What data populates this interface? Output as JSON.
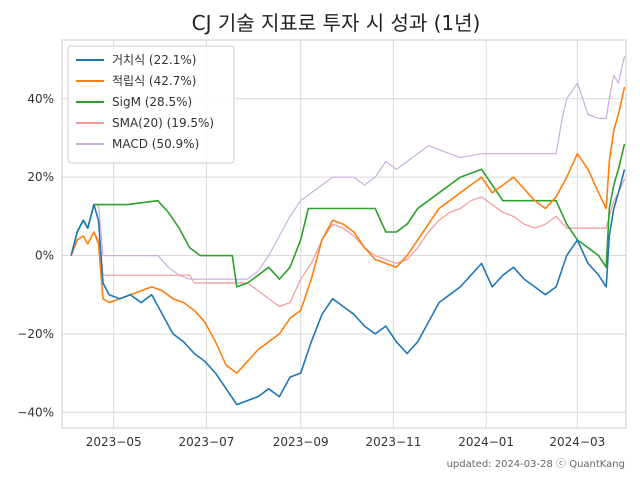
{
  "chart_data": {
    "type": "line",
    "title": "CJ 기술 지표로 투자 시 성과 (1년)",
    "footer": "updated: 2024-03-28 ⓒ QuantKang",
    "xlabel": "",
    "ylabel": "",
    "x_range": [
      "2023-03-28",
      "2024-04-02"
    ],
    "ylim": [
      -44,
      55
    ],
    "y_ticks": [
      -40,
      -20,
      0,
      20,
      40
    ],
    "y_tick_labels": [
      "−40%",
      "−20%",
      "0%",
      "20%",
      "40%"
    ],
    "x_ticks": [
      "2023-05-01",
      "2023-07-01",
      "2023-09-01",
      "2023-11-01",
      "2024-01-01",
      "2024-03-01"
    ],
    "x_tick_labels": [
      "2023−05",
      "2023−07",
      "2023−09",
      "2023−11",
      "2024−01",
      "2024−03"
    ],
    "grid": true,
    "legend_position": "top-left",
    "series": [
      {
        "name": "거치식 (22.1%)",
        "color": "#1f77b4",
        "points": [
          [
            "2023-04-03",
            0
          ],
          [
            "2023-04-07",
            6
          ],
          [
            "2023-04-11",
            9
          ],
          [
            "2023-04-14",
            7
          ],
          [
            "2023-04-18",
            13
          ],
          [
            "2023-04-21",
            9
          ],
          [
            "2023-04-24",
            -7
          ],
          [
            "2023-04-28",
            -10
          ],
          [
            "2023-05-05",
            -11
          ],
          [
            "2023-05-12",
            -10
          ],
          [
            "2023-05-19",
            -12
          ],
          [
            "2023-05-26",
            -10
          ],
          [
            "2023-06-02",
            -15
          ],
          [
            "2023-06-09",
            -20
          ],
          [
            "2023-06-16",
            -22
          ],
          [
            "2023-06-23",
            -25
          ],
          [
            "2023-06-30",
            -27
          ],
          [
            "2023-07-07",
            -30
          ],
          [
            "2023-07-14",
            -34
          ],
          [
            "2023-07-21",
            -38
          ],
          [
            "2023-07-28",
            -37
          ],
          [
            "2023-08-04",
            -36
          ],
          [
            "2023-08-11",
            -34
          ],
          [
            "2023-08-18",
            -36
          ],
          [
            "2023-08-25",
            -31
          ],
          [
            "2023-09-01",
            -30
          ],
          [
            "2023-09-08",
            -22
          ],
          [
            "2023-09-15",
            -15
          ],
          [
            "2023-09-22",
            -11
          ],
          [
            "2023-09-29",
            -13
          ],
          [
            "2023-10-06",
            -15
          ],
          [
            "2023-10-13",
            -18
          ],
          [
            "2023-10-20",
            -20
          ],
          [
            "2023-10-27",
            -18
          ],
          [
            "2023-11-03",
            -22
          ],
          [
            "2023-11-10",
            -25
          ],
          [
            "2023-11-17",
            -22
          ],
          [
            "2023-11-24",
            -17
          ],
          [
            "2023-12-01",
            -12
          ],
          [
            "2023-12-08",
            -10
          ],
          [
            "2023-12-15",
            -8
          ],
          [
            "2023-12-22",
            -5
          ],
          [
            "2023-12-29",
            -2
          ],
          [
            "2024-01-05",
            -8
          ],
          [
            "2024-01-12",
            -5
          ],
          [
            "2024-01-19",
            -3
          ],
          [
            "2024-01-26",
            -6
          ],
          [
            "2024-02-02",
            -8
          ],
          [
            "2024-02-09",
            -10
          ],
          [
            "2024-02-16",
            -8
          ],
          [
            "2024-02-23",
            0
          ],
          [
            "2024-03-01",
            4
          ],
          [
            "2024-03-08",
            -2
          ],
          [
            "2024-03-15",
            -5
          ],
          [
            "2024-03-20",
            -8
          ],
          [
            "2024-03-22",
            5
          ],
          [
            "2024-03-25",
            12
          ],
          [
            "2024-03-28",
            16
          ],
          [
            "2024-04-01",
            22
          ]
        ]
      },
      {
        "name": "적립식 (42.7%)",
        "color": "#ff7f0e",
        "points": [
          [
            "2023-04-03",
            0
          ],
          [
            "2023-04-07",
            4
          ],
          [
            "2023-04-11",
            5
          ],
          [
            "2023-04-14",
            3
          ],
          [
            "2023-04-18",
            6
          ],
          [
            "2023-04-21",
            3
          ],
          [
            "2023-04-24",
            -11
          ],
          [
            "2023-04-28",
            -12
          ],
          [
            "2023-05-05",
            -11
          ],
          [
            "2023-05-12",
            -10
          ],
          [
            "2023-05-19",
            -9
          ],
          [
            "2023-05-26",
            -8
          ],
          [
            "2023-06-02",
            -9
          ],
          [
            "2023-06-09",
            -11
          ],
          [
            "2023-06-16",
            -12
          ],
          [
            "2023-06-23",
            -14
          ],
          [
            "2023-06-30",
            -17
          ],
          [
            "2023-07-07",
            -22
          ],
          [
            "2023-07-14",
            -28
          ],
          [
            "2023-07-21",
            -30
          ],
          [
            "2023-07-28",
            -27
          ],
          [
            "2023-08-04",
            -24
          ],
          [
            "2023-08-11",
            -22
          ],
          [
            "2023-08-18",
            -20
          ],
          [
            "2023-08-25",
            -16
          ],
          [
            "2023-09-01",
            -14
          ],
          [
            "2023-09-08",
            -6
          ],
          [
            "2023-09-15",
            4
          ],
          [
            "2023-09-22",
            9
          ],
          [
            "2023-09-29",
            8
          ],
          [
            "2023-10-06",
            6
          ],
          [
            "2023-10-13",
            2
          ],
          [
            "2023-10-20",
            -1
          ],
          [
            "2023-10-27",
            -2
          ],
          [
            "2023-11-03",
            -3
          ],
          [
            "2023-11-10",
            0
          ],
          [
            "2023-11-17",
            4
          ],
          [
            "2023-11-24",
            8
          ],
          [
            "2023-12-01",
            12
          ],
          [
            "2023-12-08",
            14
          ],
          [
            "2023-12-15",
            16
          ],
          [
            "2023-12-22",
            18
          ],
          [
            "2023-12-29",
            20
          ],
          [
            "2024-01-05",
            16
          ],
          [
            "2024-01-12",
            18
          ],
          [
            "2024-01-19",
            20
          ],
          [
            "2024-01-26",
            17
          ],
          [
            "2024-02-02",
            14
          ],
          [
            "2024-02-09",
            12
          ],
          [
            "2024-02-16",
            15
          ],
          [
            "2024-02-23",
            20
          ],
          [
            "2024-03-01",
            26
          ],
          [
            "2024-03-08",
            22
          ],
          [
            "2024-03-15",
            16
          ],
          [
            "2024-03-20",
            12
          ],
          [
            "2024-03-22",
            24
          ],
          [
            "2024-03-25",
            32
          ],
          [
            "2024-03-28",
            36
          ],
          [
            "2024-04-01",
            43
          ]
        ]
      },
      {
        "name": "SigM (28.5%)",
        "color": "#2ca02c",
        "points": [
          [
            "2023-04-03",
            0
          ],
          [
            "2023-04-07",
            6
          ],
          [
            "2023-04-11",
            9
          ],
          [
            "2023-04-14",
            7
          ],
          [
            "2023-04-18",
            13
          ],
          [
            "2023-04-21",
            13
          ],
          [
            "2023-05-10",
            13
          ],
          [
            "2023-05-30",
            14
          ],
          [
            "2023-06-06",
            11
          ],
          [
            "2023-06-13",
            7
          ],
          [
            "2023-06-20",
            2
          ],
          [
            "2023-06-27",
            0
          ],
          [
            "2023-07-04",
            0
          ],
          [
            "2023-07-18",
            0
          ],
          [
            "2023-07-21",
            -8
          ],
          [
            "2023-07-28",
            -7
          ],
          [
            "2023-08-04",
            -5
          ],
          [
            "2023-08-11",
            -3
          ],
          [
            "2023-08-18",
            -6
          ],
          [
            "2023-08-25",
            -3
          ],
          [
            "2023-09-01",
            4
          ],
          [
            "2023-09-06",
            12
          ],
          [
            "2023-10-20",
            12
          ],
          [
            "2023-10-27",
            6
          ],
          [
            "2023-11-03",
            6
          ],
          [
            "2023-11-10",
            8
          ],
          [
            "2023-11-17",
            12
          ],
          [
            "2023-11-24",
            14
          ],
          [
            "2023-12-01",
            16
          ],
          [
            "2023-12-08",
            18
          ],
          [
            "2023-12-15",
            20
          ],
          [
            "2023-12-22",
            21
          ],
          [
            "2023-12-29",
            22
          ],
          [
            "2024-01-05",
            18
          ],
          [
            "2024-01-12",
            14
          ],
          [
            "2024-02-16",
            14
          ],
          [
            "2024-02-23",
            8
          ],
          [
            "2024-03-01",
            4
          ],
          [
            "2024-03-08",
            2
          ],
          [
            "2024-03-15",
            0
          ],
          [
            "2024-03-20",
            -3
          ],
          [
            "2024-03-22",
            12
          ],
          [
            "2024-03-25",
            18
          ],
          [
            "2024-03-28",
            22
          ],
          [
            "2024-04-01",
            28.5
          ]
        ]
      },
      {
        "name": "SMA(20) (19.5%)",
        "color": "#f19999",
        "points": [
          [
            "2023-04-03",
            0
          ],
          [
            "2023-04-07",
            4
          ],
          [
            "2023-04-11",
            5
          ],
          [
            "2023-04-14",
            3
          ],
          [
            "2023-04-18",
            6
          ],
          [
            "2023-04-21",
            4
          ],
          [
            "2023-04-24",
            -5
          ],
          [
            "2023-06-20",
            -5
          ],
          [
            "2023-06-23",
            -7
          ],
          [
            "2023-07-28",
            -7
          ],
          [
            "2023-08-04",
            -9
          ],
          [
            "2023-08-11",
            -11
          ],
          [
            "2023-08-18",
            -13
          ],
          [
            "2023-08-25",
            -12
          ],
          [
            "2023-09-01",
            -6
          ],
          [
            "2023-09-08",
            -2
          ],
          [
            "2023-09-15",
            4
          ],
          [
            "2023-09-22",
            8
          ],
          [
            "2023-09-29",
            7
          ],
          [
            "2023-10-06",
            5
          ],
          [
            "2023-10-13",
            2
          ],
          [
            "2023-10-20",
            0
          ],
          [
            "2023-10-27",
            -1
          ],
          [
            "2023-11-03",
            -2
          ],
          [
            "2023-11-10",
            -1
          ],
          [
            "2023-11-17",
            2
          ],
          [
            "2023-11-24",
            6
          ],
          [
            "2023-12-01",
            9
          ],
          [
            "2023-12-08",
            11
          ],
          [
            "2023-12-15",
            12
          ],
          [
            "2023-12-22",
            14
          ],
          [
            "2023-12-29",
            15
          ],
          [
            "2024-01-05",
            13
          ],
          [
            "2024-01-12",
            11
          ],
          [
            "2024-01-19",
            10
          ],
          [
            "2024-01-26",
            8
          ],
          [
            "2024-02-02",
            7
          ],
          [
            "2024-02-09",
            8
          ],
          [
            "2024-02-16",
            10
          ],
          [
            "2024-02-23",
            7
          ],
          [
            "2024-03-01",
            7
          ],
          [
            "2024-03-20",
            7
          ],
          [
            "2024-03-22",
            10
          ],
          [
            "2024-03-25",
            14
          ],
          [
            "2024-03-28",
            16
          ],
          [
            "2024-04-01",
            19.5
          ]
        ]
      },
      {
        "name": "MACD (50.9%)",
        "color": "#c9aee0",
        "points": [
          [
            "2023-04-03",
            0
          ],
          [
            "2023-04-07",
            6
          ],
          [
            "2023-04-11",
            9
          ],
          [
            "2023-04-14",
            7
          ],
          [
            "2023-04-18",
            13
          ],
          [
            "2023-04-21",
            13
          ],
          [
            "2023-04-24",
            0
          ],
          [
            "2023-05-30",
            0
          ],
          [
            "2023-06-06",
            -3
          ],
          [
            "2023-06-13",
            -5
          ],
          [
            "2023-06-20",
            -6
          ],
          [
            "2023-07-28",
            -6
          ],
          [
            "2023-08-04",
            -4
          ],
          [
            "2023-08-11",
            0
          ],
          [
            "2023-08-18",
            5
          ],
          [
            "2023-08-25",
            10
          ],
          [
            "2023-09-01",
            14
          ],
          [
            "2023-09-08",
            16
          ],
          [
            "2023-09-15",
            18
          ],
          [
            "2023-09-22",
            20
          ],
          [
            "2023-10-06",
            20
          ],
          [
            "2023-10-13",
            18
          ],
          [
            "2023-10-20",
            20
          ],
          [
            "2023-10-27",
            24
          ],
          [
            "2023-11-03",
            22
          ],
          [
            "2023-11-10",
            24
          ],
          [
            "2023-11-17",
            26
          ],
          [
            "2023-11-24",
            28
          ],
          [
            "2023-12-01",
            27
          ],
          [
            "2023-12-08",
            26
          ],
          [
            "2023-12-15",
            25
          ],
          [
            "2023-12-29",
            26
          ],
          [
            "2024-01-05",
            26
          ],
          [
            "2024-02-16",
            26
          ],
          [
            "2024-02-20",
            35
          ],
          [
            "2024-02-23",
            40
          ],
          [
            "2024-03-01",
            44
          ],
          [
            "2024-03-08",
            36
          ],
          [
            "2024-03-15",
            35
          ],
          [
            "2024-03-20",
            35
          ],
          [
            "2024-03-22",
            40
          ],
          [
            "2024-03-25",
            46
          ],
          [
            "2024-03-28",
            44
          ],
          [
            "2024-04-01",
            50.9
          ]
        ]
      }
    ]
  }
}
